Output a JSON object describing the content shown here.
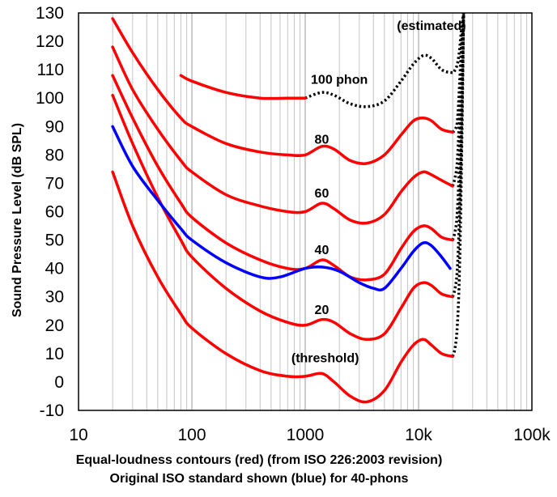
{
  "chart_data": {
    "type": "line",
    "xlabel_lines": [
      "Equal-loudness contours (red) (from ISO 226:2003 revision)",
      "Original ISO standard shown (blue) for 40-phons"
    ],
    "ylabel": "Sound Pressure Level (dB SPL)",
    "x_scale": "log",
    "xlim": [
      10,
      100000
    ],
    "ylim": [
      -10,
      130
    ],
    "x_ticks": [
      10,
      100,
      1000,
      10000,
      100000
    ],
    "x_tick_labels": [
      "10",
      "100",
      "1000",
      "10k",
      "100k"
    ],
    "y_ticks": [
      -10,
      0,
      10,
      20,
      30,
      40,
      50,
      60,
      70,
      80,
      90,
      100,
      110,
      120,
      130
    ],
    "y_tick_labels": [
      "-10",
      "0",
      "10",
      "20",
      "30",
      "40",
      "50",
      "60",
      "70",
      "80",
      "90",
      "100",
      "110",
      "120",
      "130"
    ],
    "grid": "vertical-minor-log",
    "series": [
      {
        "color": "#ff0000",
        "points": [
          [
            20,
            74
          ],
          [
            30,
            55
          ],
          [
            50,
            37
          ],
          [
            80,
            24
          ],
          [
            100,
            19
          ],
          [
            200,
            10
          ],
          [
            400,
            4
          ],
          [
            700,
            2
          ],
          [
            1000,
            2
          ],
          [
            1400,
            3
          ],
          [
            1800,
            0
          ],
          [
            2500,
            -5
          ],
          [
            3500,
            -7
          ],
          [
            5000,
            -3
          ],
          [
            7000,
            7
          ],
          [
            9000,
            13
          ],
          [
            11000,
            15
          ],
          [
            13000,
            13
          ],
          [
            16000,
            10
          ],
          [
            20000,
            9
          ]
        ],
        "dashed_points": [
          [
            20000,
            9
          ],
          [
            21000,
            12
          ],
          [
            22000,
            20
          ],
          [
            23000,
            40
          ],
          [
            24000,
            80
          ],
          [
            25000,
            130
          ]
        ]
      },
      {
        "color": "#ff0000",
        "points": [
          [
            20,
            101
          ],
          [
            30,
            84
          ],
          [
            50,
            65
          ],
          [
            80,
            50
          ],
          [
            100,
            44
          ],
          [
            200,
            33
          ],
          [
            400,
            25
          ],
          [
            700,
            21
          ],
          [
            1000,
            20
          ],
          [
            1400,
            22
          ],
          [
            1800,
            21
          ],
          [
            2500,
            17
          ],
          [
            3500,
            15
          ],
          [
            5000,
            17
          ],
          [
            7000,
            26
          ],
          [
            9000,
            33
          ],
          [
            11000,
            35
          ],
          [
            13000,
            34
          ],
          [
            16000,
            31
          ],
          [
            20000,
            30
          ]
        ],
        "dashed_points": [
          [
            20000,
            30
          ],
          [
            21000,
            33
          ],
          [
            22000,
            40
          ],
          [
            23000,
            60
          ],
          [
            24000,
            90
          ],
          [
            25000,
            130
          ]
        ]
      },
      {
        "color": "#ff0000",
        "points": [
          [
            20,
            108
          ],
          [
            30,
            93
          ],
          [
            50,
            76
          ],
          [
            80,
            63
          ],
          [
            100,
            58
          ],
          [
            200,
            49
          ],
          [
            400,
            43
          ],
          [
            700,
            40
          ],
          [
            1000,
            40
          ],
          [
            1400,
            43
          ],
          [
            1800,
            41
          ],
          [
            2500,
            37
          ],
          [
            3500,
            36
          ],
          [
            5000,
            38
          ],
          [
            7000,
            47
          ],
          [
            9000,
            53
          ],
          [
            11000,
            55
          ],
          [
            13000,
            54
          ],
          [
            16000,
            51
          ],
          [
            20000,
            50
          ]
        ],
        "dashed_points": [
          [
            20000,
            50
          ],
          [
            21000,
            53
          ],
          [
            22000,
            60
          ],
          [
            23000,
            80
          ],
          [
            24000,
            110
          ],
          [
            25000,
            130
          ]
        ]
      },
      {
        "color": "#ff0000",
        "points": [
          [
            20,
            118
          ],
          [
            30,
            103
          ],
          [
            50,
            89
          ],
          [
            80,
            78
          ],
          [
            100,
            74
          ],
          [
            200,
            66
          ],
          [
            400,
            62
          ],
          [
            700,
            60
          ],
          [
            1000,
            60
          ],
          [
            1400,
            63
          ],
          [
            1800,
            61
          ],
          [
            2500,
            57
          ],
          [
            3500,
            56
          ],
          [
            5000,
            59
          ],
          [
            7000,
            67
          ],
          [
            9000,
            72
          ],
          [
            11000,
            74
          ],
          [
            13000,
            73
          ],
          [
            16000,
            71
          ],
          [
            20000,
            69
          ]
        ],
        "dashed_points": [
          [
            20000,
            69
          ],
          [
            21000,
            72
          ],
          [
            22000,
            78
          ],
          [
            23000,
            95
          ],
          [
            24000,
            115
          ],
          [
            25000,
            130
          ]
        ]
      },
      {
        "color": "#ff0000",
        "points": [
          [
            20,
            128
          ],
          [
            30,
            116
          ],
          [
            50,
            103
          ],
          [
            80,
            93
          ],
          [
            100,
            90
          ],
          [
            200,
            84
          ],
          [
            400,
            81
          ],
          [
            700,
            80
          ],
          [
            1000,
            80
          ],
          [
            1400,
            83
          ],
          [
            1800,
            82
          ],
          [
            2500,
            78
          ],
          [
            3500,
            77
          ],
          [
            5000,
            80
          ],
          [
            7000,
            87
          ],
          [
            9000,
            92
          ],
          [
            11000,
            93
          ],
          [
            13000,
            92
          ],
          [
            16000,
            89
          ],
          [
            20000,
            88
          ]
        ],
        "dashed_points": [
          [
            20000,
            88
          ],
          [
            21000,
            89
          ],
          [
            22000,
            92
          ],
          [
            23000,
            105
          ],
          [
            24000,
            120
          ],
          [
            25000,
            130
          ]
        ]
      },
      {
        "color": "#ff0000",
        "points": [
          [
            80,
            108
          ],
          [
            100,
            106
          ],
          [
            200,
            102
          ],
          [
            400,
            100
          ],
          [
            700,
            100
          ],
          [
            1000,
            100
          ]
        ],
        "dashed_points": [
          [
            1000,
            100
          ],
          [
            1400,
            102
          ],
          [
            1800,
            101
          ],
          [
            2500,
            98
          ],
          [
            3500,
            97
          ],
          [
            5000,
            99
          ],
          [
            7000,
            106
          ],
          [
            9000,
            112
          ],
          [
            11000,
            115
          ],
          [
            13000,
            114
          ],
          [
            16000,
            110
          ],
          [
            20000,
            109
          ],
          [
            21000,
            110
          ],
          [
            22000,
            112
          ],
          [
            23000,
            117
          ],
          [
            24000,
            125
          ],
          [
            25000,
            130
          ]
        ]
      },
      {
        "color": "#0000ff",
        "points": [
          [
            20,
            90
          ],
          [
            30,
            76
          ],
          [
            50,
            64
          ],
          [
            80,
            54
          ],
          [
            100,
            50
          ],
          [
            200,
            42
          ],
          [
            400,
            37
          ],
          [
            600,
            37
          ],
          [
            1000,
            40
          ],
          [
            1400,
            40.5
          ],
          [
            2000,
            39
          ],
          [
            3000,
            35
          ],
          [
            4000,
            33
          ],
          [
            5000,
            33
          ],
          [
            7000,
            40
          ],
          [
            9000,
            46
          ],
          [
            11000,
            49
          ],
          [
            13000,
            48
          ],
          [
            16000,
            44
          ],
          [
            19000,
            40
          ]
        ],
        "dashed_points": []
      }
    ],
    "annotations": [
      {
        "text": "(threshold)",
        "x": 1500,
        "y": 7
      },
      {
        "text": "20",
        "x": 1400,
        "y": 24
      },
      {
        "text": "40",
        "x": 1400,
        "y": 45
      },
      {
        "text": "60",
        "x": 1400,
        "y": 65
      },
      {
        "text": "80",
        "x": 1400,
        "y": 84
      },
      {
        "text": "100 phon",
        "x": 2000,
        "y": 105
      },
      {
        "text": "(estimated)",
        "x": 13000,
        "y": 124
      }
    ]
  }
}
